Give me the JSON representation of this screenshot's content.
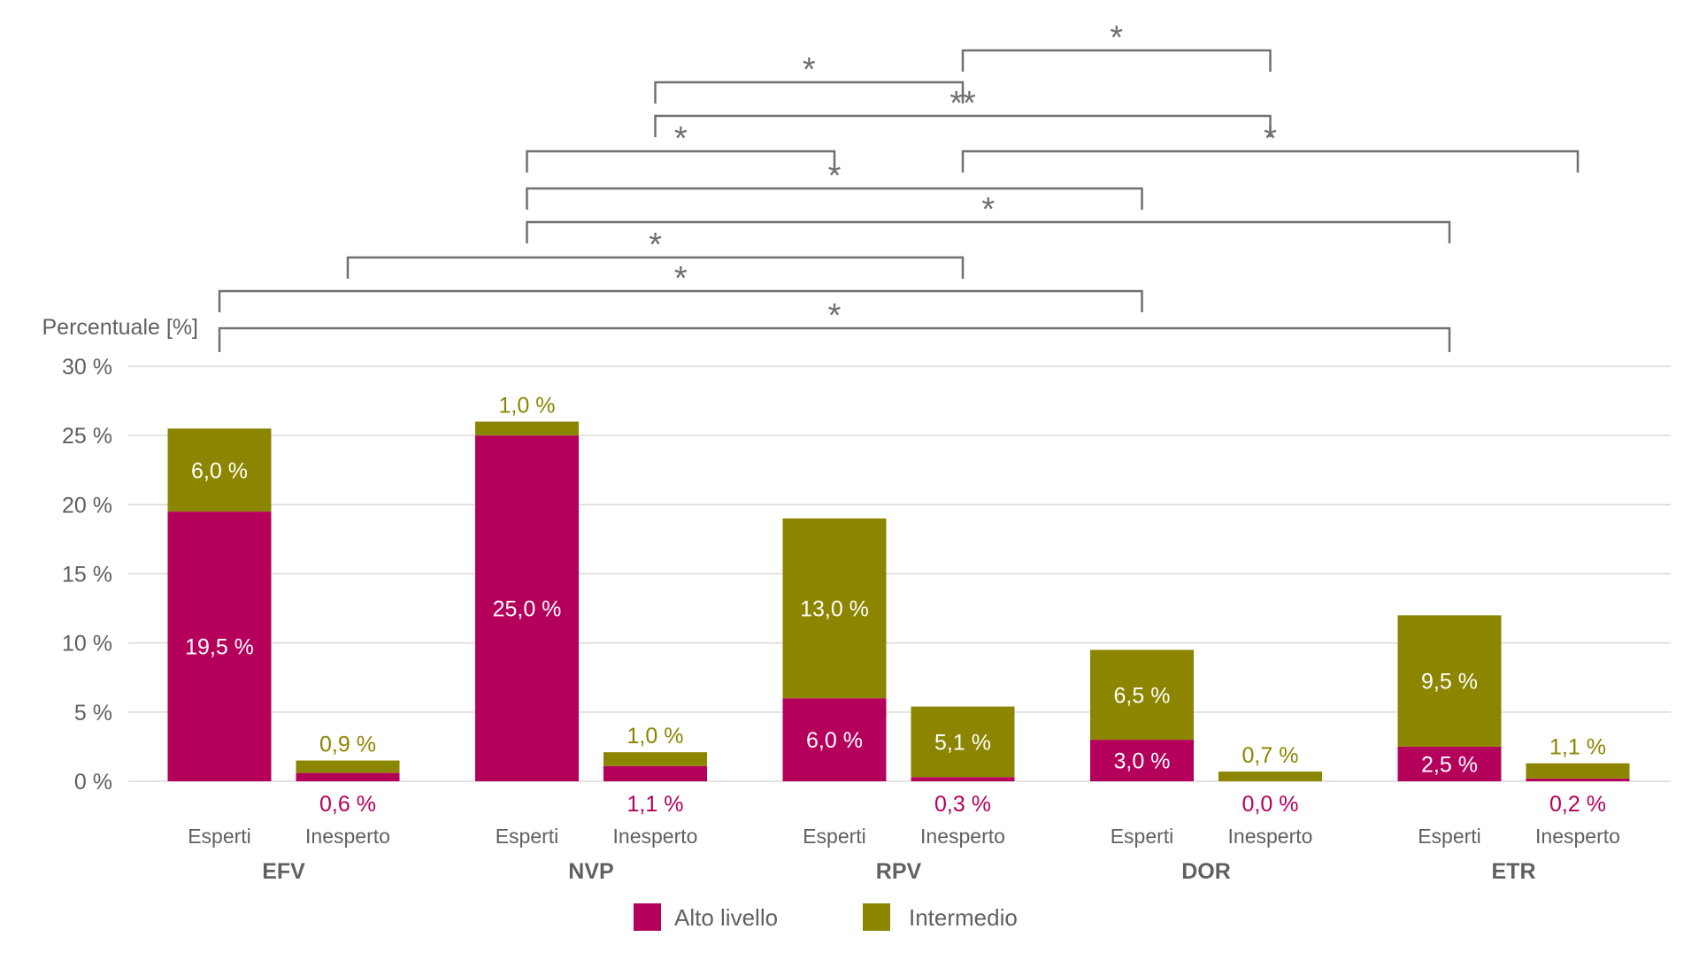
{
  "chart_data": {
    "type": "bar",
    "stacked": true,
    "ylabel": "Percentuale [%]",
    "ylim": [
      0,
      30
    ],
    "yticks": [
      0,
      5,
      10,
      15,
      20,
      25,
      30
    ],
    "ytick_labels": [
      "0 %",
      "5 %",
      "10 %",
      "15 %",
      "20 %",
      "25 %",
      "30 %"
    ],
    "grid": true,
    "legend_position": "bottom",
    "groups": [
      "EFV",
      "NVP",
      "RPV",
      "DOR",
      "ETR"
    ],
    "subcategories": [
      "Esperti",
      "Inesperto"
    ],
    "series": [
      {
        "name": "Alto livello",
        "color": "#b5005b",
        "values": [
          19.5,
          0.6,
          25.0,
          1.1,
          6.0,
          0.3,
          3.0,
          0.0,
          2.5,
          0.2
        ],
        "labels": [
          "19,5 %",
          "0,6 %",
          "25,0 %",
          "1,1 %",
          "6,0 %",
          "0,3 %",
          "3,0 %",
          "0,0 %",
          "2,5 %",
          "0,2 %"
        ]
      },
      {
        "name": "Intermedio",
        "color": "#8c8500",
        "values": [
          6.0,
          0.9,
          1.0,
          1.0,
          13.0,
          5.1,
          6.5,
          0.7,
          9.5,
          1.1
        ],
        "labels": [
          "6,0 %",
          "0,9 %",
          "1,0 %",
          "1,0 %",
          "13,0 %",
          "5,1 %",
          "6,5 %",
          "0,7 %",
          "9,5 %",
          "1,1 %"
        ]
      }
    ],
    "significance": [
      {
        "from": 5,
        "to": 7,
        "label": "*"
      },
      {
        "from": 3,
        "to": 5,
        "label": "*"
      },
      {
        "from": 3,
        "to": 7,
        "label": "**"
      },
      {
        "from": 2,
        "to": 4,
        "label": "*"
      },
      {
        "from": 5,
        "to": 9,
        "label": "*"
      },
      {
        "from": 2,
        "to": 6,
        "label": "*"
      },
      {
        "from": 2,
        "to": 8,
        "label": "*"
      },
      {
        "from": 1,
        "to": 5,
        "label": "*"
      },
      {
        "from": 0,
        "to": 6,
        "label": "*"
      },
      {
        "from": 0,
        "to": 8,
        "label": "*"
      }
    ]
  }
}
